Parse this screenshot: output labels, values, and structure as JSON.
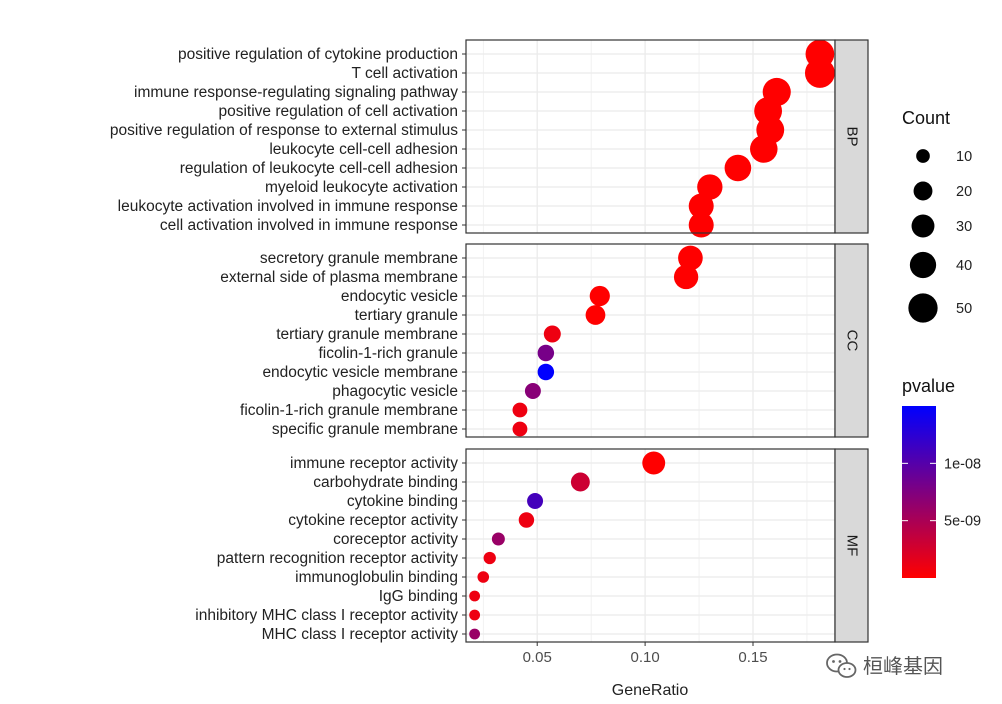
{
  "chart_data": {
    "type": "scatter",
    "subtype": "dot-plot-faceted",
    "xlabel": "GeneRatio",
    "xlim": [
      0.017,
      0.188
    ],
    "x_ticks": [
      0.05,
      0.1,
      0.15
    ],
    "x_tick_labels": [
      "0.05",
      "0.10",
      "0.15"
    ],
    "grid": true,
    "size_legend": {
      "title": "Count",
      "values": [
        10,
        20,
        30,
        40,
        50
      ],
      "labels": [
        "10",
        "20",
        "30",
        "40",
        "50"
      ]
    },
    "color_legend": {
      "title": "pvalue",
      "low_color": "#FF0000",
      "high_color": "#0000FF",
      "range": [
        0,
        1.5e-08
      ],
      "tick_values": [
        1e-08,
        5e-09
      ],
      "tick_labels": [
        "1e-08",
        "5e-09"
      ]
    },
    "panels": [
      {
        "name": "BP",
        "terms": [
          {
            "label": "positive regulation of cytokine production",
            "gene_ratio": 0.181,
            "count": 48,
            "pvalue": 0
          },
          {
            "label": "T cell activation",
            "gene_ratio": 0.181,
            "count": 52,
            "pvalue": 0
          },
          {
            "label": "immune response-regulating signaling pathway",
            "gene_ratio": 0.161,
            "count": 46,
            "pvalue": 0
          },
          {
            "label": "positive regulation of cell activation",
            "gene_ratio": 0.157,
            "count": 45,
            "pvalue": 0
          },
          {
            "label": "positive regulation of response to external stimulus",
            "gene_ratio": 0.158,
            "count": 45,
            "pvalue": 0
          },
          {
            "label": "leukocyte cell-cell adhesion",
            "gene_ratio": 0.155,
            "count": 44,
            "pvalue": 0
          },
          {
            "label": "regulation of leukocyte cell-cell adhesion",
            "gene_ratio": 0.143,
            "count": 41,
            "pvalue": 0
          },
          {
            "label": "myeloid leukocyte activation",
            "gene_ratio": 0.13,
            "count": 37,
            "pvalue": 0
          },
          {
            "label": "leukocyte activation involved in immune response",
            "gene_ratio": 0.126,
            "count": 36,
            "pvalue": 0
          },
          {
            "label": "cell activation involved in immune response",
            "gene_ratio": 0.126,
            "count": 36,
            "pvalue": 0
          }
        ]
      },
      {
        "name": "CC",
        "terms": [
          {
            "label": "secretory granule membrane",
            "gene_ratio": 0.121,
            "count": 35,
            "pvalue": 0
          },
          {
            "label": "external side of plasma membrane",
            "gene_ratio": 0.119,
            "count": 34,
            "pvalue": 0
          },
          {
            "label": "endocytic vesicle",
            "gene_ratio": 0.079,
            "count": 23,
            "pvalue": 0
          },
          {
            "label": "tertiary granule",
            "gene_ratio": 0.077,
            "count": 22,
            "pvalue": 0
          },
          {
            "label": "tertiary granule membrane",
            "gene_ratio": 0.057,
            "count": 16,
            "pvalue": 1e-09
          },
          {
            "label": "ficolin-1-rich granule",
            "gene_ratio": 0.054,
            "count": 15,
            "pvalue": 8e-09
          },
          {
            "label": "endocytic vesicle membrane",
            "gene_ratio": 0.054,
            "count": 15,
            "pvalue": 1.5e-08
          },
          {
            "label": "phagocytic vesicle",
            "gene_ratio": 0.048,
            "count": 14,
            "pvalue": 7e-09
          },
          {
            "label": "ficolin-1-rich granule membrane",
            "gene_ratio": 0.042,
            "count": 12,
            "pvalue": 1e-09
          },
          {
            "label": "specific granule membrane",
            "gene_ratio": 0.042,
            "count": 12,
            "pvalue": 1e-09
          }
        ]
      },
      {
        "name": "MF",
        "terms": [
          {
            "label": "immune receptor activity",
            "gene_ratio": 0.104,
            "count": 30,
            "pvalue": 0
          },
          {
            "label": "carbohydrate binding",
            "gene_ratio": 0.07,
            "count": 20,
            "pvalue": 3e-09
          },
          {
            "label": "cytokine binding",
            "gene_ratio": 0.049,
            "count": 14,
            "pvalue": 1.1e-08
          },
          {
            "label": "cytokine receptor activity",
            "gene_ratio": 0.045,
            "count": 13,
            "pvalue": 1e-09
          },
          {
            "label": "coreceptor activity",
            "gene_ratio": 0.032,
            "count": 9,
            "pvalue": 6e-09
          },
          {
            "label": "pattern recognition receptor activity",
            "gene_ratio": 0.028,
            "count": 8,
            "pvalue": 1e-09
          },
          {
            "label": "immunoglobulin binding",
            "gene_ratio": 0.025,
            "count": 7,
            "pvalue": 1e-09
          },
          {
            "label": "IgG binding",
            "gene_ratio": 0.021,
            "count": 6,
            "pvalue": 1e-09
          },
          {
            "label": "inhibitory MHC class I receptor activity",
            "gene_ratio": 0.021,
            "count": 6,
            "pvalue": 1e-09
          },
          {
            "label": "MHC class I receptor activity",
            "gene_ratio": 0.021,
            "count": 6,
            "pvalue": 6e-09
          }
        ]
      }
    ]
  },
  "watermark": {
    "text": "桓峰基因",
    "icon": "wechat-icon"
  },
  "colors": {
    "panel_border": "#333333",
    "grid": "#EBEBEB",
    "strip_fill": "#D9D9D9"
  }
}
